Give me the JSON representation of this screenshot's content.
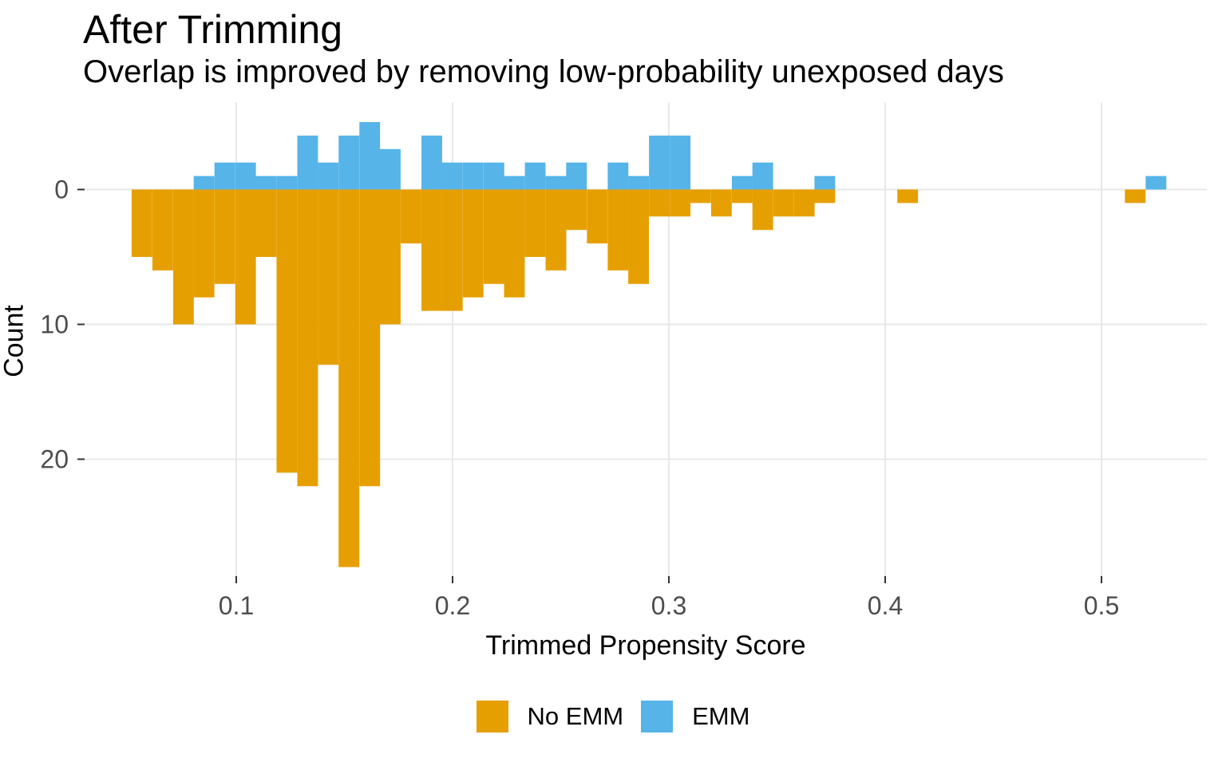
{
  "title": "After Trimming",
  "subtitle": "Overlap is improved by removing low-probability unexposed days",
  "axes": {
    "x_label": "Trimmed Propensity Score",
    "y_label": "Count",
    "x_tick_values": [
      0.1,
      0.2,
      0.3,
      0.4,
      0.5
    ],
    "x_tick_labels": [
      "0.1",
      "0.2",
      "0.3",
      "0.4",
      "0.5"
    ],
    "y_tick_counts": [
      0,
      10,
      20
    ],
    "y_tick_labels": [
      "0",
      "10",
      "20"
    ]
  },
  "legend": {
    "items": [
      {
        "label": "No EMM",
        "color": "#E69F00"
      },
      {
        "label": "EMM",
        "color": "#56B4E9"
      }
    ]
  },
  "colors": {
    "no_emm": "#E69F00",
    "emm": "#56B4E9",
    "gridline": "#E8E8E8",
    "tick_mark": "#333333",
    "tick_label": "#4D4D4D",
    "text": "#000000",
    "background": "#FFFFFF"
  },
  "chart_data": {
    "type": "bar",
    "subtype": "mirrored-histogram",
    "title": "After Trimming",
    "subtitle": "Overlap is improved by removing low-probability unexposed days",
    "xlabel": "Trimmed Propensity Score",
    "ylabel": "Count",
    "legend_position": "bottom",
    "grid": "major-only",
    "orientation": "EMM drawn upward from baseline, No EMM drawn downward; y tick labels 0/10/20 increase downward",
    "x_range_visible": [
      0.03,
      0.549
    ],
    "bin_width": 0.00956,
    "bin_centers": [
      0.0564,
      0.066,
      0.0756,
      0.0851,
      0.0947,
      0.1043,
      0.1138,
      0.1234,
      0.133,
      0.1425,
      0.1521,
      0.1617,
      0.1712,
      0.1808,
      0.1904,
      0.1999,
      0.2095,
      0.2191,
      0.2286,
      0.2382,
      0.2478,
      0.2573,
      0.2669,
      0.2765,
      0.286,
      0.2956,
      0.3052,
      0.3147,
      0.3243,
      0.3339,
      0.3434,
      0.353,
      0.3626,
      0.3721,
      0.3817,
      0.3913,
      0.4008,
      0.4104,
      0.42,
      0.4295,
      0.4391,
      0.4487,
      0.4582,
      0.4678,
      0.4774,
      0.4869,
      0.4965,
      0.5061,
      0.5156,
      0.5252
    ],
    "series": [
      {
        "name": "EMM",
        "color": "#56B4E9",
        "direction": "up",
        "values": [
          0,
          0,
          0,
          1,
          2,
          2,
          1,
          1,
          4,
          2,
          4,
          5,
          3,
          0,
          4,
          2,
          2,
          2,
          1,
          2,
          1,
          2,
          0,
          2,
          1,
          4,
          4,
          0,
          0,
          1,
          2,
          0,
          0,
          1,
          0,
          0,
          0,
          0,
          0,
          0,
          0,
          0,
          0,
          0,
          0,
          0,
          0,
          0,
          0,
          1
        ]
      },
      {
        "name": "No EMM",
        "color": "#E69F00",
        "direction": "down",
        "values": [
          5,
          6,
          10,
          8,
          7,
          10,
          5,
          21,
          22,
          13,
          28,
          22,
          10,
          4,
          9,
          9,
          8,
          7,
          8,
          5,
          6,
          3,
          4,
          6,
          7,
          2,
          2,
          1,
          2,
          1,
          3,
          2,
          2,
          1,
          0,
          0,
          0,
          1,
          0,
          0,
          0,
          0,
          0,
          0,
          0,
          0,
          0,
          0,
          1,
          0
        ]
      }
    ]
  }
}
